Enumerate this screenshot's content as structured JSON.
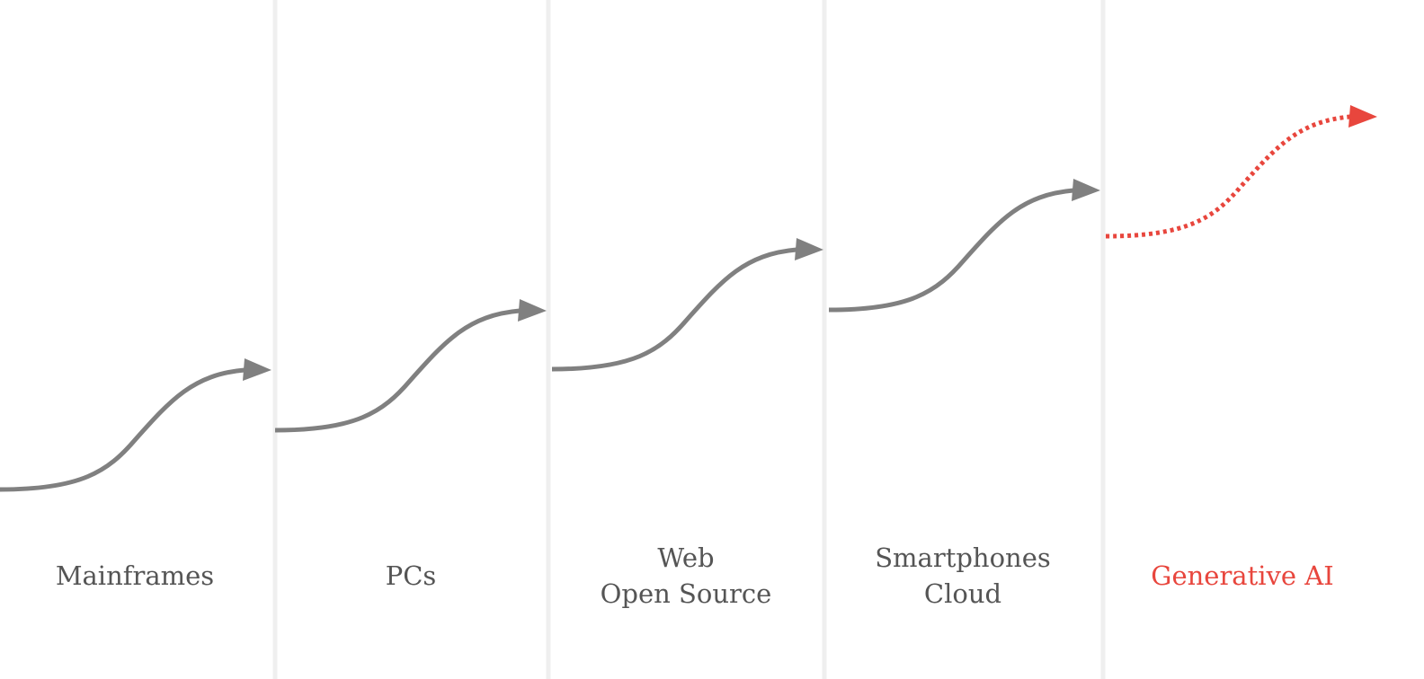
{
  "eras": [
    {
      "lines": [
        "Mainframes"
      ]
    },
    {
      "lines": [
        "PCs"
      ]
    },
    {
      "lines": [
        "Web",
        "Open Source"
      ]
    },
    {
      "lines": [
        "Smartphones",
        "Cloud"
      ]
    },
    {
      "lines": [
        "Generative AI"
      ]
    }
  ]
}
